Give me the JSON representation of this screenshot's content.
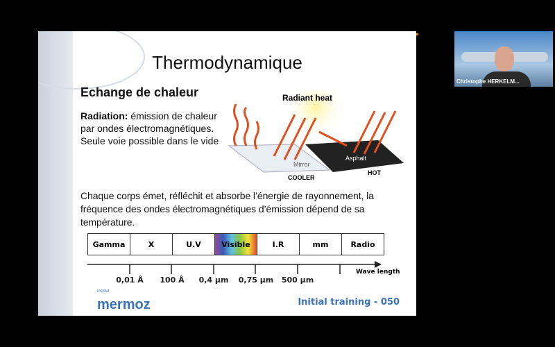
{
  "slide": {
    "title": "Thermodynamique",
    "subtitle": "Echange de chaleur",
    "radiation_label": "Radiation:",
    "radiation_text_1": " émission de chaleur",
    "radiation_text_2": "par ondes électromagnétiques.",
    "radiation_text_3": "Seule voie possible dans le vide",
    "illustration": {
      "title": "Radiant heat",
      "mirror": "Mirror",
      "cooler": "COOLER",
      "asphalt": "Asphalt",
      "hot": "HOT"
    },
    "paragraph": "Chaque corps émet, réfléchit et absorbe l’énergie de rayonnement, la fréquence des ondes électromagnétiques d’émission dépend de sa température.",
    "spectrum": [
      "Gamma",
      "X",
      "U.V",
      "Visible",
      "I.R",
      "mm",
      "Radio"
    ],
    "ticks": [
      "0,01 Å",
      "100 Å",
      "0,4 µm",
      "0,75 µm",
      "500 µm"
    ],
    "axis_label": "Wave length",
    "logo": "mermoz",
    "logo_small": "institut",
    "footer": "Initial training - 050"
  },
  "participant": {
    "name": "Christophe HERKELM..."
  }
}
